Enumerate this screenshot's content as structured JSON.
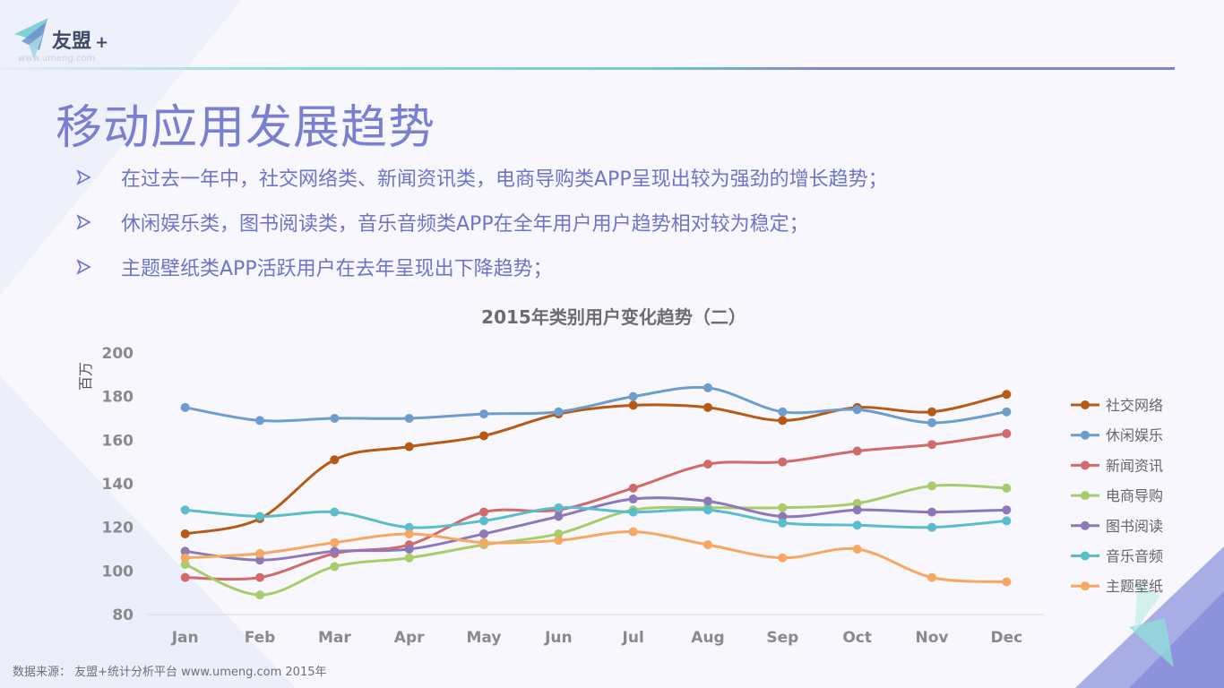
{
  "logo": {
    "brand": "友盟",
    "plus": "+",
    "url": "www.umeng.com"
  },
  "slide": {
    "title": "移动应用发展趋势",
    "bullets": [
      "在过去一年中，社交网络类、新闻资讯类，电商导购类APP呈现出较为强劲的增长趋势；",
      "休闲娱乐类，图书阅读类，音乐音频类APP在全年用户用户趋势相对较为稳定；",
      "主题壁纸类APP活跃用户在去年呈现出下降趋势；"
    ]
  },
  "colors": {
    "title": "#7a7fd1",
    "bullet_text": "#6c74cc",
    "bullet_arrow": "#6c74cc",
    "chart_title": "#6d6d6d",
    "axis_text": "#8a8a8a"
  },
  "chart_data": {
    "type": "line",
    "title": "2015年类别用户变化趋势（二）",
    "ylabel": "百万",
    "xlabel": "",
    "ylim": [
      80,
      200
    ],
    "yticks": [
      80,
      100,
      120,
      140,
      160,
      180,
      200
    ],
    "grid": false,
    "legend": "right",
    "categories": [
      "Jan",
      "Feb",
      "Mar",
      "Apr",
      "May",
      "Jun",
      "Jul",
      "Aug",
      "Sep",
      "Oct",
      "Nov",
      "Dec"
    ],
    "series": [
      {
        "name": "社交网络",
        "color": "#b85a14",
        "values": [
          117,
          124,
          151,
          157,
          162,
          172,
          176,
          175,
          169,
          175,
          173,
          181
        ]
      },
      {
        "name": "休闲娱乐",
        "color": "#6e9ccf",
        "values": [
          175,
          169,
          170,
          170,
          172,
          173,
          180,
          184,
          173,
          174,
          168,
          173
        ]
      },
      {
        "name": "新闻资讯",
        "color": "#d26a6a",
        "values": [
          97,
          97,
          108,
          112,
          127,
          128,
          138,
          149,
          150,
          155,
          158,
          163
        ]
      },
      {
        "name": "电商导购",
        "color": "#a9cc6b",
        "values": [
          103,
          89,
          102,
          106,
          112,
          117,
          128,
          129,
          129,
          131,
          139,
          138
        ]
      },
      {
        "name": "图书阅读",
        "color": "#8e79b7",
        "values": [
          109,
          105,
          109,
          110,
          117,
          125,
          133,
          132,
          125,
          128,
          127,
          128
        ]
      },
      {
        "name": "音乐音频",
        "color": "#5bbdcc",
        "values": [
          128,
          125,
          127,
          120,
          123,
          129,
          127,
          128,
          122,
          121,
          120,
          123
        ]
      },
      {
        "name": "主题壁纸",
        "color": "#f6a760",
        "values": [
          106,
          108,
          113,
          117,
          113,
          114,
          118,
          112,
          106,
          110,
          97,
          95
        ]
      }
    ]
  },
  "source": "数据来源： 友盟+统计分析平台 www.umeng.com 2015年"
}
